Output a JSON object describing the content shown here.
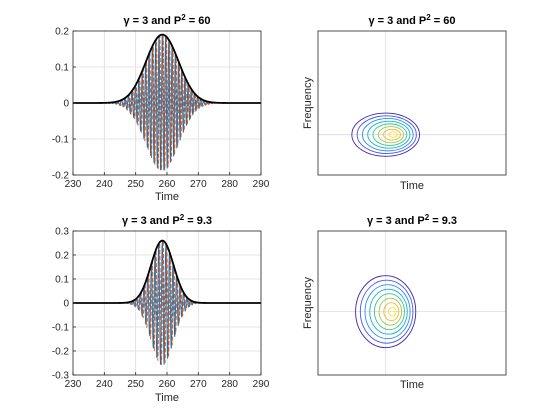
{
  "chart_data": [
    {
      "type": "line",
      "panel": "top-left",
      "title": "γ = 3 and P² = 60",
      "title_prefix": "γ = 3 and P",
      "title_sup": "2",
      "title_suffix": " = 60",
      "xlabel": "Time",
      "ylabel": "",
      "xlim": [
        230,
        290
      ],
      "ylim": [
        -0.2,
        0.2
      ],
      "xticks": [
        230,
        240,
        250,
        260,
        270,
        280,
        290
      ],
      "xticklabels": [
        "230",
        "240",
        "250",
        "260",
        "270",
        "280",
        "290"
      ],
      "yticks": [
        -0.2,
        -0.1,
        0,
        0.1,
        0.2
      ],
      "yticklabels": [
        "-0.2",
        "-0.1",
        "0",
        "0.1",
        "0.2"
      ],
      "grid": true,
      "envelope": {
        "center": 258.5,
        "peak": 0.19,
        "width_sigma": 5.2
      },
      "carrier_period": 1.05,
      "series": [
        {
          "role": "envelope",
          "color": "#000000",
          "style": "solid"
        },
        {
          "role": "real-part",
          "color": "#0072BD",
          "style": "solid"
        },
        {
          "role": "imag-part",
          "color": "#D95319",
          "style": "dashed"
        }
      ]
    },
    {
      "type": "contour",
      "panel": "top-right",
      "title": "γ = 3 and P² = 60",
      "title_prefix": "γ = 3 and P",
      "title_sup": "2",
      "title_suffix": " = 60",
      "xlabel": "Time",
      "ylabel": "Frequency",
      "grid": true,
      "center": [
        0.36,
        0.72
      ],
      "radii": [
        0.18,
        0.15
      ],
      "levels": 8
    },
    {
      "type": "line",
      "panel": "bottom-left",
      "title": "γ = 3 and P² = 9.3",
      "title_prefix": "γ = 3 and P",
      "title_sup": "2",
      "title_suffix": " = 9.3",
      "xlabel": "Time",
      "ylabel": "",
      "xlim": [
        230,
        290
      ],
      "ylim": [
        -0.3,
        0.3
      ],
      "xticks": [
        230,
        240,
        250,
        260,
        270,
        280,
        290
      ],
      "xticklabels": [
        "230",
        "240",
        "250",
        "260",
        "270",
        "280",
        "290"
      ],
      "yticks": [
        -0.3,
        -0.2,
        -0.1,
        0,
        0.1,
        0.2,
        0.3
      ],
      "yticklabels": [
        "-0.3",
        "-0.2",
        "-0.1",
        "0",
        "0.1",
        "0.2",
        "0.3"
      ],
      "grid": true,
      "envelope": {
        "center": 258.5,
        "peak": 0.26,
        "width_sigma": 3.6
      },
      "carrier_period": 1.15,
      "series": [
        {
          "role": "envelope",
          "color": "#000000",
          "style": "solid"
        },
        {
          "role": "real-part",
          "color": "#0072BD",
          "style": "solid"
        },
        {
          "role": "imag-part",
          "color": "#D95319",
          "style": "dashed"
        }
      ]
    },
    {
      "type": "contour",
      "panel": "bottom-right",
      "title": "γ = 3 and P² = 9.3",
      "title_prefix": "γ = 3 and P",
      "title_sup": "2",
      "title_suffix": " = 9.3",
      "xlabel": "Time",
      "ylabel": "Frequency",
      "grid": true,
      "center": [
        0.36,
        0.56
      ],
      "radii": [
        0.16,
        0.25
      ],
      "levels": 8
    }
  ],
  "contour_colors": [
    "#3e26a8",
    "#4755f8",
    "#2c8bf3",
    "#18b1c7",
    "#3bc58f",
    "#9bca4f",
    "#e9ba2d",
    "#f9e21e"
  ]
}
